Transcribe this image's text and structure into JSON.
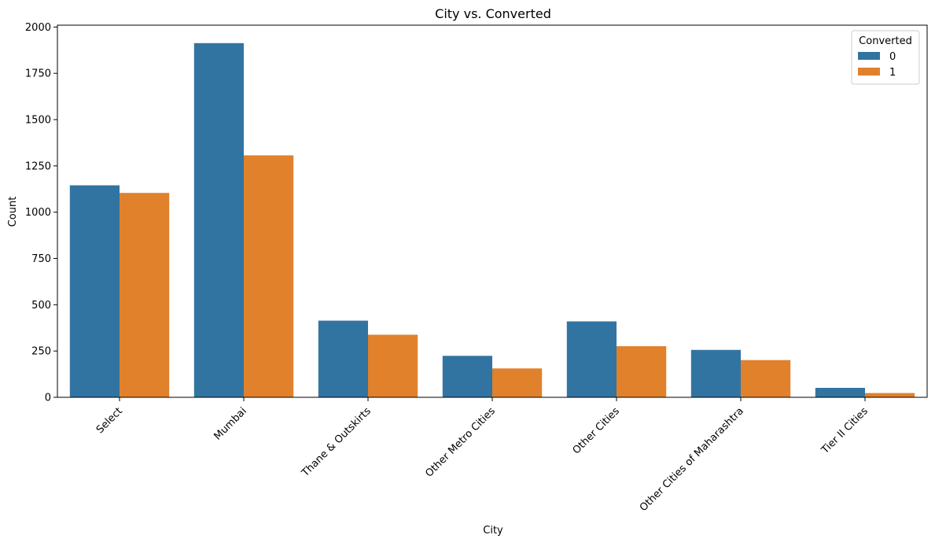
{
  "chart_data": {
    "type": "bar",
    "title": "City vs. Converted",
    "xlabel": "City",
    "ylabel": "Count",
    "categories": [
      "Select",
      "Mumbai",
      "Thane & Outskirts",
      "Other Metro Cities",
      "Other Cities",
      "Other Cities of Maharashtra",
      "Tier II Cities"
    ],
    "series": [
      {
        "name": "0",
        "color": "#3274a1",
        "values": [
          1145,
          1913,
          414,
          224,
          410,
          256,
          51
        ]
      },
      {
        "name": "1",
        "color": "#e1812c",
        "values": [
          1104,
          1307,
          338,
          156,
          276,
          201,
          23
        ]
      }
    ],
    "ylim": [
      0,
      2010
    ],
    "yticks": [
      0,
      250,
      500,
      750,
      1000,
      1250,
      1500,
      1750,
      2000
    ],
    "grid": false,
    "legend": {
      "title": "Converted",
      "placement": "top-right"
    }
  }
}
